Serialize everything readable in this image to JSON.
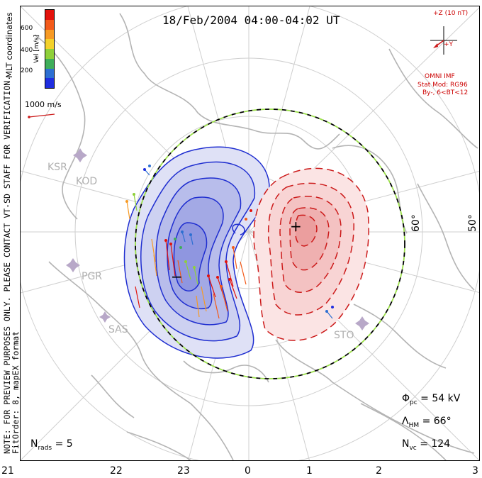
{
  "title": "18/Feb/2004 04:00-04:02 UT",
  "side_note": {
    "line1": "NOTE: FOR PREVIEW PURPOSES ONLY. PLEASE CONTACT VT-SD STAFF FOR VERIFICATION.",
    "line2": "FitOrder: 8, mapEX format"
  },
  "coord_label": "MLT coordinates",
  "colorbar": {
    "label": "Vel [m/s]",
    "ticks": [
      "600",
      "400",
      "200"
    ],
    "colors": [
      "#e3120b",
      "#f35a1a",
      "#f79a24",
      "#f3d12b",
      "#8fd03a",
      "#3fae5a",
      "#2d6fd2",
      "#1f2ee0"
    ]
  },
  "vector_scale": "1000 m/s",
  "imf": {
    "bz_label": "+Z (10 nT)",
    "by_label": "+Y",
    "source": "OMNI IMF",
    "model": "Stat Mod: RG96",
    "condition": "By-, 6<BT<12"
  },
  "stats": {
    "phi_symbol": "Φ",
    "phi_sub": "pc",
    "phi_value": "= 54 kV",
    "lambda_symbol": "Λ",
    "lambda_sub": "HM",
    "lambda_value": "= 66°",
    "nvc_symbol": "N",
    "nvc_sub": "vc",
    "nvc_value": "= 124",
    "nrads_symbol": "N",
    "nrads_sub": "rads",
    "nrads_value": "= 5"
  },
  "mlt_labels": [
    "21",
    "22",
    "23",
    "0",
    "1",
    "2",
    "3"
  ],
  "lat_labels": [
    "60°",
    "50°"
  ],
  "radars": [
    "KSR",
    "KOD",
    "PGR",
    "SAS",
    "STO"
  ],
  "potential_markers": {
    "max": "+",
    "min": "−"
  },
  "colors": {
    "negative_cell": "#2030c0",
    "positive_cell": "#cc1a1a",
    "hmb_dash_a": "#000000",
    "hmb_dash_b": "#9be04a",
    "coast": "#b4b4b4",
    "grid": "#c8c8c8"
  }
}
